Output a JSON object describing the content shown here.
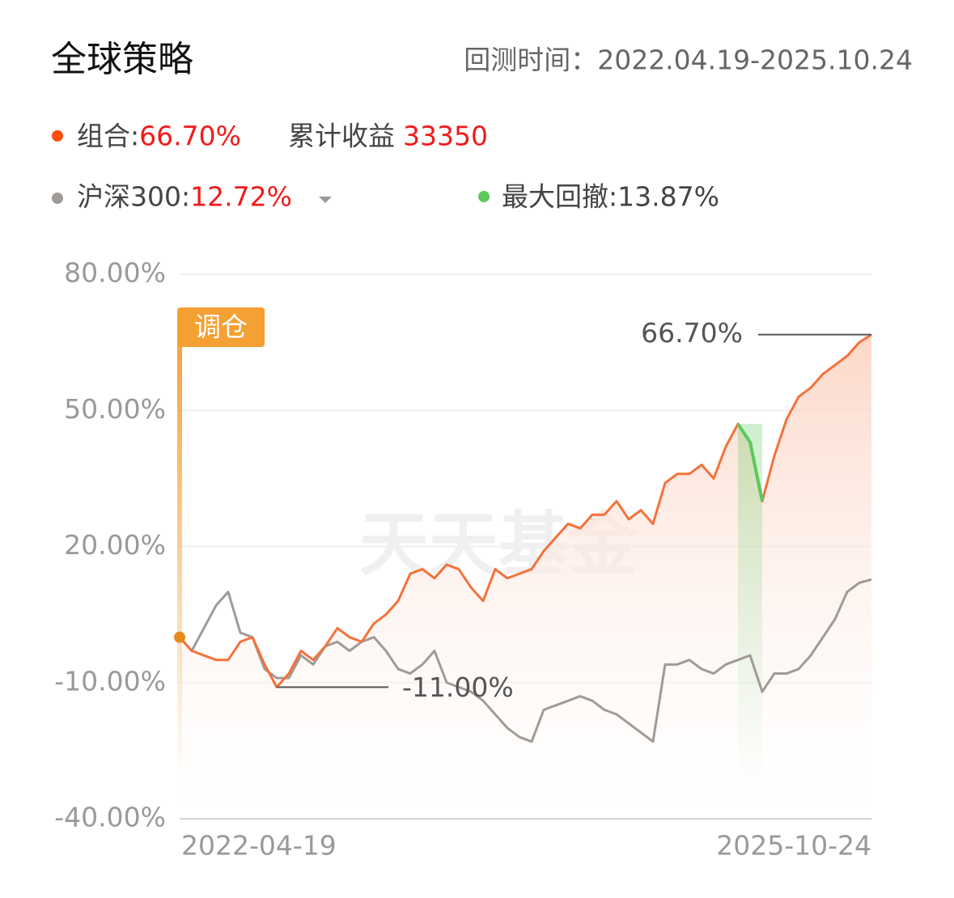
{
  "header": {
    "title": "全球策略",
    "period": "回测时间：2022.04.19-2025.10.24"
  },
  "chart_data": {
    "type": "line",
    "categories": [
      "2022-04-19",
      null,
      null,
      null,
      null,
      null,
      null,
      null,
      null,
      null,
      null,
      null,
      null,
      null,
      null,
      null,
      null,
      null,
      null,
      null,
      null,
      null,
      null,
      null,
      null,
      null,
      null,
      null,
      null,
      null,
      null,
      null,
      null,
      null,
      null,
      null,
      null,
      null,
      null,
      null,
      null,
      null,
      null,
      null,
      null,
      null,
      null,
      null,
      null,
      null,
      null,
      null,
      null,
      null,
      null,
      null,
      null,
      "2025-10-24"
    ],
    "series": [
      {
        "name": "组合:",
        "summary": "66.70%",
        "color": "#f5713b",
        "values": [
          0,
          -3,
          -4,
          -5,
          -5,
          -1,
          0,
          -6,
          -11,
          -8,
          -3,
          -5,
          -2,
          2,
          0,
          -1,
          3,
          5,
          8,
          14,
          15,
          13,
          16,
          15,
          11,
          8,
          15,
          13,
          14,
          15,
          19,
          22,
          25,
          24,
          27,
          27,
          30,
          26,
          28,
          25,
          34,
          36,
          36,
          38,
          35,
          42,
          47,
          43,
          30,
          40,
          48,
          53,
          55,
          58,
          60,
          62,
          65,
          66.7
        ]
      },
      {
        "name": "沪深300:",
        "summary": "12.72%",
        "color": "#a09b98",
        "values": [
          0,
          -3,
          2,
          7,
          10,
          1,
          0,
          -7,
          -9,
          -9,
          -4,
          -6,
          -2,
          -1,
          -3,
          -1,
          0,
          -3,
          -7,
          -8,
          -6,
          -3,
          -10,
          -11,
          -12,
          -14,
          -17,
          -20,
          -22,
          -23,
          -16,
          -15,
          -14,
          -13,
          -14,
          -16,
          -17,
          -19,
          -21,
          -23,
          -6,
          -6,
          -5,
          -7,
          -8,
          -6,
          -5,
          -4,
          -12,
          -8,
          -8,
          -7,
          -4,
          0,
          4,
          10,
          12,
          12.72
        ]
      }
    ],
    "cumulative_label": "累计收益",
    "cumulative_value": 33350,
    "max_drawdown": {
      "label": "最大回撤:13.87%",
      "color": "#5cc85a"
    },
    "max_label": "66.70%",
    "min_label": "-11.00%",
    "rebalance_label": "调仓",
    "watermark": "天天基金",
    "ylim": [
      -40,
      80
    ],
    "yticks": [
      {
        "value": -40,
        "label": "-40.00%"
      },
      {
        "value": -10,
        "label": "-10.00%"
      },
      {
        "value": 20,
        "label": "20.00%"
      },
      {
        "value": 50,
        "label": "50.00%"
      },
      {
        "value": 80,
        "label": "80.00%"
      }
    ],
    "grid": true
  }
}
